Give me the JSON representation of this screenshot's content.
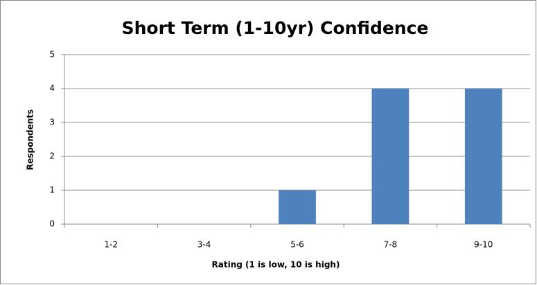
{
  "chart_data": {
    "type": "bar",
    "title": "Short Term (1-10yr) Confidence",
    "x_label": "Rating (1 is low, 10 is high)",
    "y_label": "Respondents",
    "categories": [
      "1-2",
      "3-4",
      "5-6",
      "7-8",
      "9-10"
    ],
    "values": [
      0,
      0,
      1,
      4,
      4
    ],
    "color": "#4f81bd",
    "ylim": [
      0,
      5
    ],
    "yticks": [
      0,
      1,
      2,
      3,
      4,
      5
    ],
    "grid": true
  }
}
